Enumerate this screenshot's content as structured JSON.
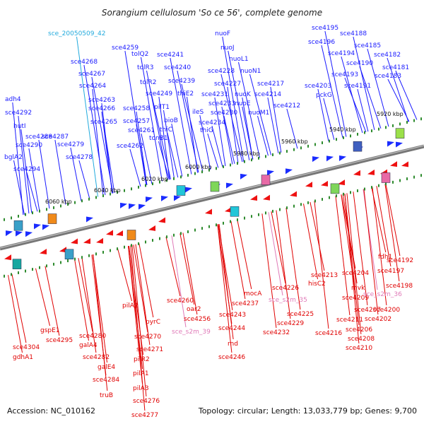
{
  "title": "Sorangium cellulosum 'So ce 56', complete genome",
  "footer": {
    "accession": "Accession: NC_010162",
    "topology": "Topology: circular; Length: 13,033,779 bp; Genes: 9,700"
  },
  "colors": {
    "top_label": "#1a1aff",
    "bottom_label": "#e00000",
    "rna_label": "#e07ab8",
    "highlight_label": "#22aadd",
    "backbone": "#777777",
    "tick": "#2e8b2e",
    "forward_arrow": "#1a2cff",
    "reverse_arrow": "#ee1111"
  },
  "kbp_ticks": [
    "5920 kbp",
    "5940 kbp",
    "5960 kbp",
    "5980 kbp",
    "6000 kbp",
    "6020 kbp",
    "6040 kbp",
    "6060 kbp"
  ],
  "top_labels": [
    "sce_20050509_42",
    "sce4268",
    "sce4267",
    "sce4264",
    "sce4263",
    "sce4266",
    "sce4265",
    "sce4259",
    "sce4258",
    "sce4257",
    "sce4261",
    "sce4262",
    "tolQ2",
    "tolR3",
    "tolR2",
    "sce4249",
    "pilT1",
    "thiC",
    "bioB",
    "tonB1",
    "sce4241",
    "sce4240",
    "sce4239",
    "thiE2",
    "ileS",
    "thiG",
    "nuoF",
    "nuoJ",
    "nuoL1",
    "nuoN1",
    "sce4228",
    "sce4227",
    "sce4231",
    "sce4233",
    "sce4230",
    "sce4234",
    "nuoK",
    "nuoE",
    "nuoM1",
    "sce4217",
    "sce4214",
    "sce4212",
    "sce4203",
    "pckG",
    "sce4195",
    "sce4196",
    "sce4188",
    "sce4194",
    "sce4185",
    "sce4190",
    "sce4182",
    "sce4193",
    "sce4181",
    "sce4183",
    "sce4191",
    "adh4",
    "sce4292",
    "hutI",
    "sce4288",
    "sce4290",
    "sce4287",
    "sce4279",
    "bglA2",
    "sce4294",
    "sce4278"
  ],
  "bottom_labels": [
    "sce4304",
    "gdhA1",
    "gspE1",
    "sce4295",
    "sce4280",
    "galA4",
    "sce4282",
    "galE4",
    "sce4284",
    "truB",
    "pilA2",
    "sce4270",
    "sce4271",
    "pilR2",
    "pilA1",
    "pilA3",
    "sce4276",
    "sce4277",
    "pyrC",
    "sce4260",
    "oar2",
    "sce4256",
    "sce_s2m_39",
    "sce4237",
    "sce4243",
    "sce4244",
    "rnd",
    "sce4246",
    "mocA",
    "sce4226",
    "sce_s2m_35",
    "sce4225",
    "sce4229",
    "sce4232",
    "sce4213",
    "hisC2",
    "sce4216",
    "sce4204",
    "mvk",
    "sce4209",
    "sce4207",
    "sce4211",
    "sce4206",
    "sce4208",
    "sce4210",
    "fdh1",
    "sce4192",
    "sce4197",
    "sce4198",
    "sce_s2m_36",
    "sce4200",
    "sce4202"
  ],
  "rna_labels": [
    "sce_s2m_39",
    "sce_s2m_35",
    "sce_s2m_36"
  ],
  "highlight_labels": [
    "sce_20050509_42"
  ]
}
